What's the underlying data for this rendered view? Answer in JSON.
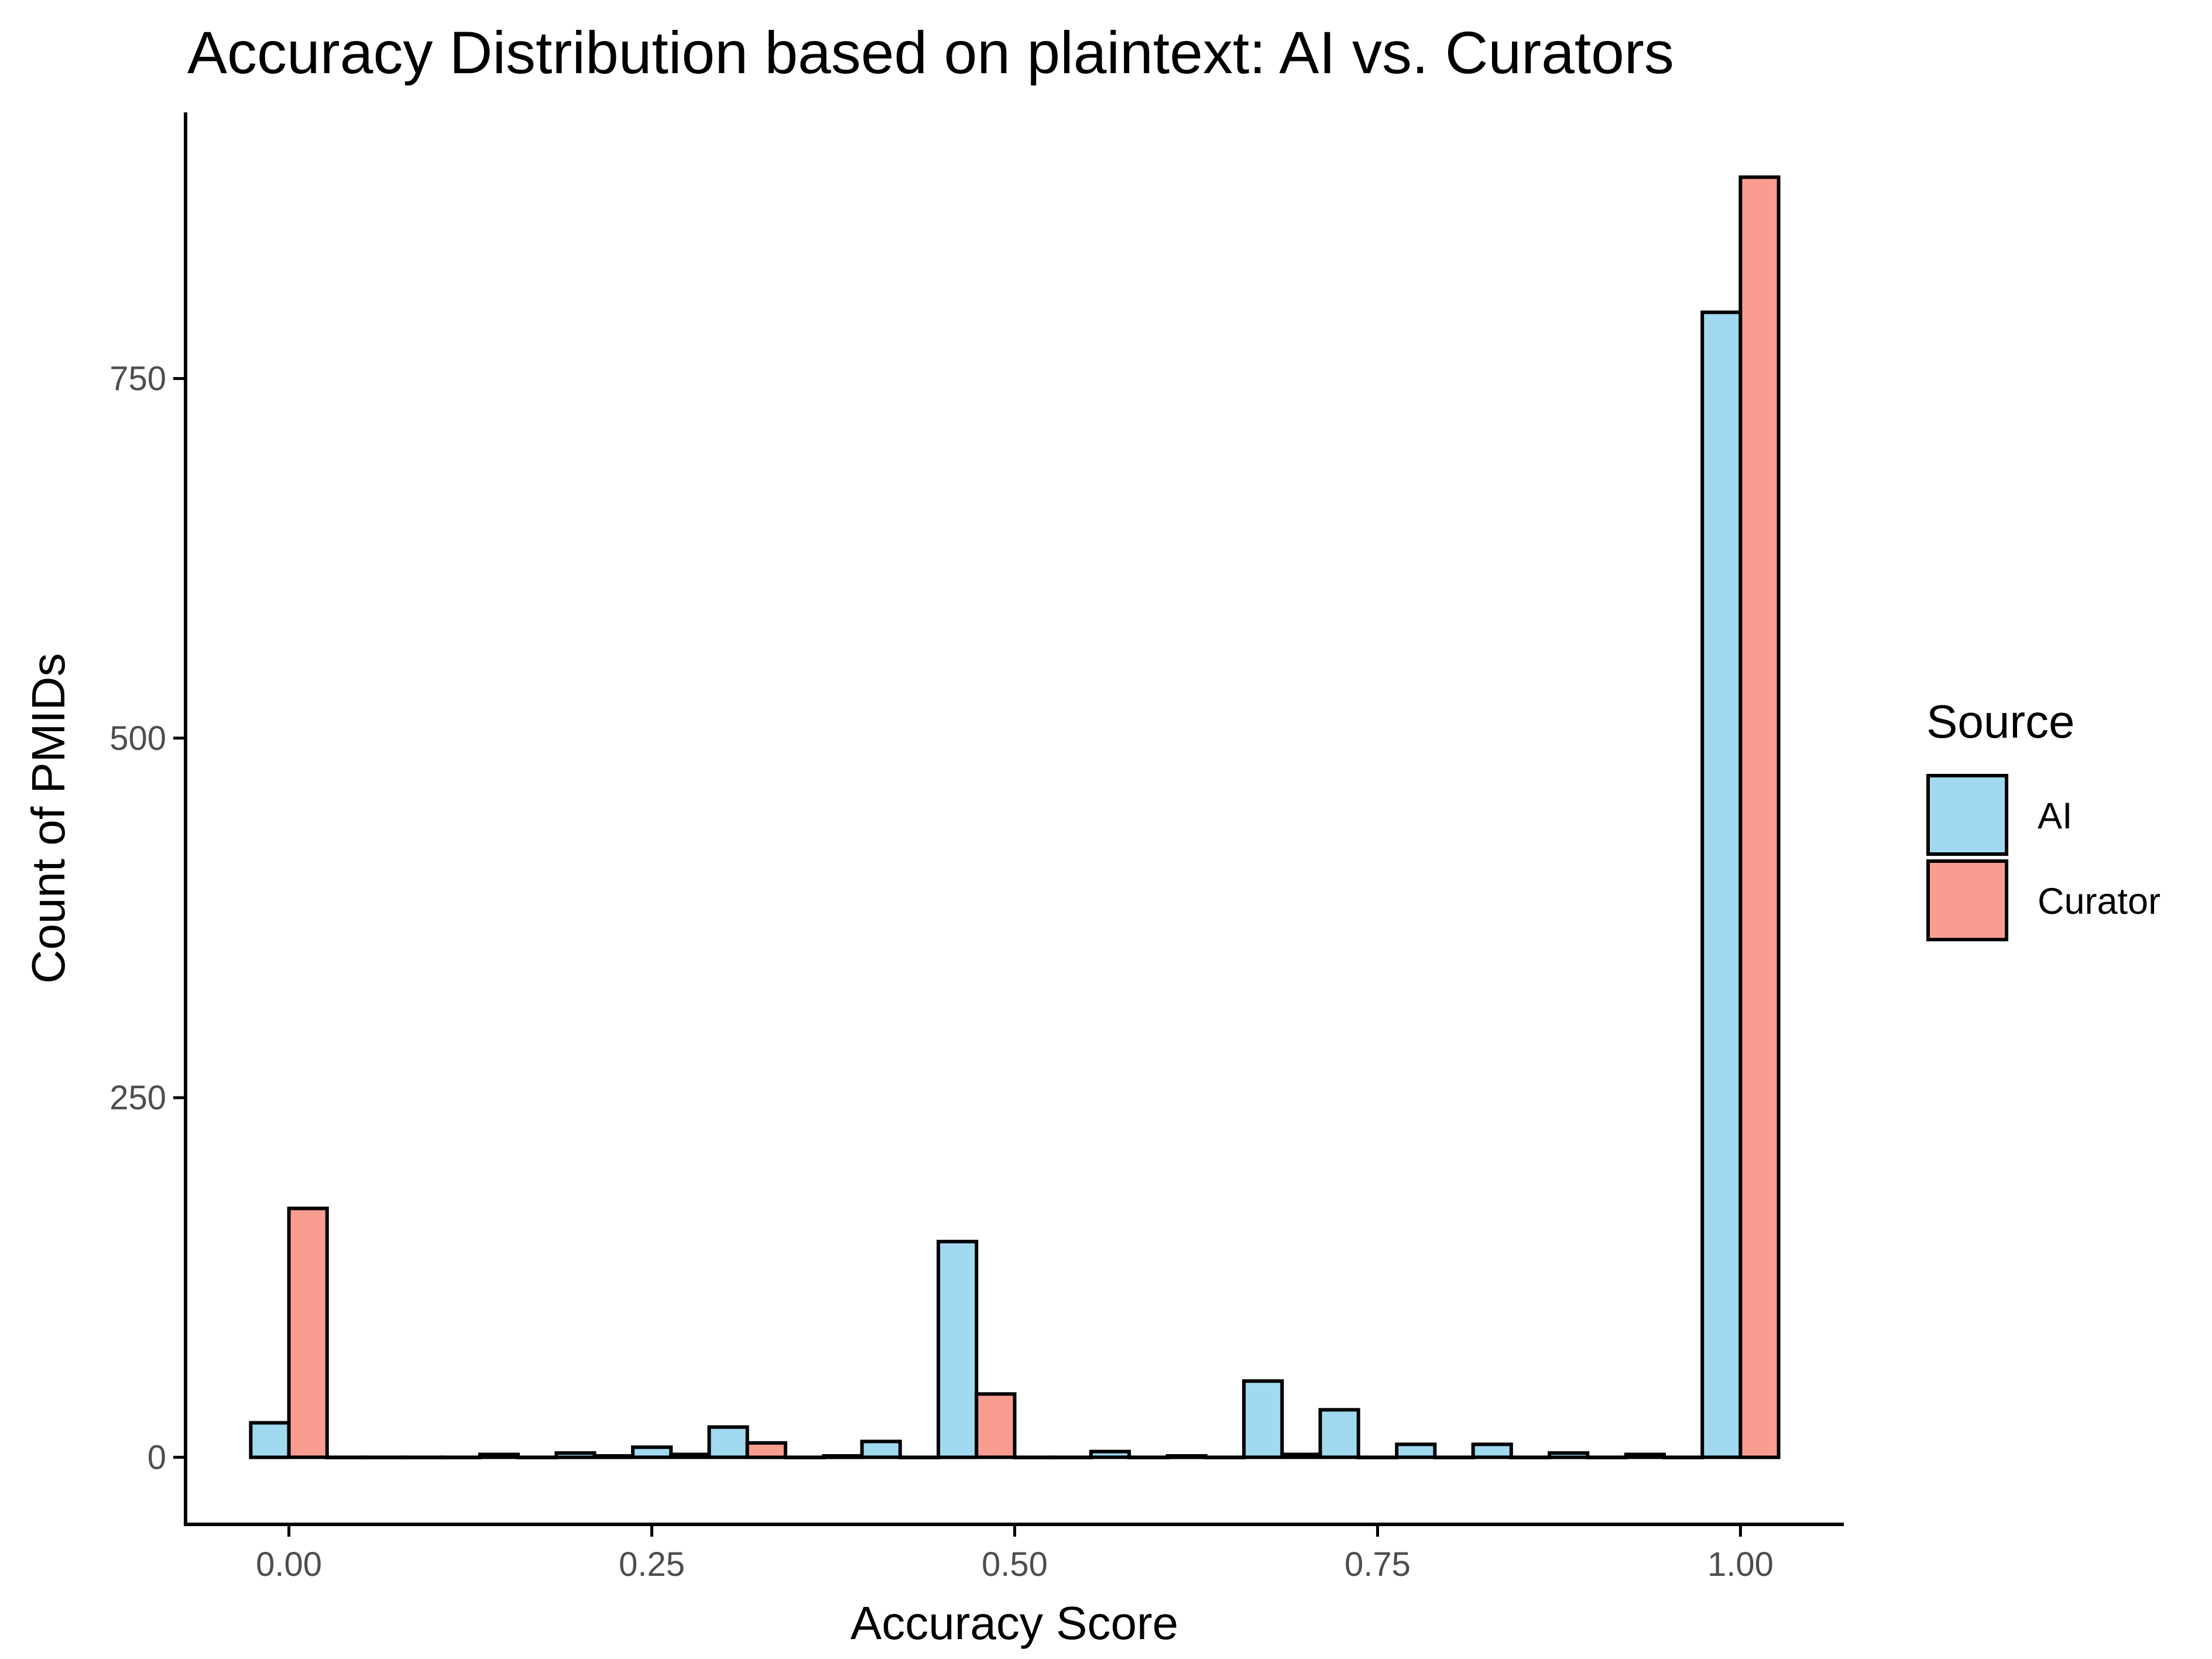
{
  "chart_data": {
    "type": "bar",
    "title": "Accuracy Distribution based on plaintext: AI vs. Curators",
    "xlabel": "Accuracy Score",
    "ylabel": "Count of PMIDs",
    "xlim": [
      -0.07,
      1.07
    ],
    "ylim": [
      -45,
      935
    ],
    "x_ticks": [
      0.0,
      0.25,
      0.5,
      0.75,
      1.0
    ],
    "x_tick_labels": [
      "0.00",
      "0.25",
      "0.50",
      "0.75",
      "1.00"
    ],
    "y_ticks": [
      0,
      250,
      500,
      750
    ],
    "y_tick_labels": [
      "0",
      "250",
      "500",
      "750"
    ],
    "grid": false,
    "legend": {
      "title": "Source",
      "position": "right"
    },
    "bin_width": 0.0526,
    "bin_centers": [
      0.0,
      0.0526,
      0.1053,
      0.1579,
      0.2105,
      0.2632,
      0.3158,
      0.3684,
      0.4211,
      0.4737,
      0.5263,
      0.5789,
      0.6316,
      0.6842,
      0.7368,
      0.7895,
      0.8421,
      0.8947,
      0.9474,
      1.0
    ],
    "series": [
      {
        "name": "AI",
        "color": "#a1d9f0",
        "values": [
          24,
          0,
          0,
          2,
          3,
          7,
          21,
          0,
          11,
          150,
          0,
          4,
          1,
          53,
          33,
          9,
          9,
          3,
          2,
          796
        ]
      },
      {
        "name": "Curator",
        "color": "#fa9d91",
        "values": [
          173,
          0,
          0,
          0,
          1,
          2,
          10,
          1,
          0,
          44,
          0,
          0,
          0,
          2,
          0,
          0,
          0,
          0,
          0,
          890
        ]
      }
    ]
  }
}
